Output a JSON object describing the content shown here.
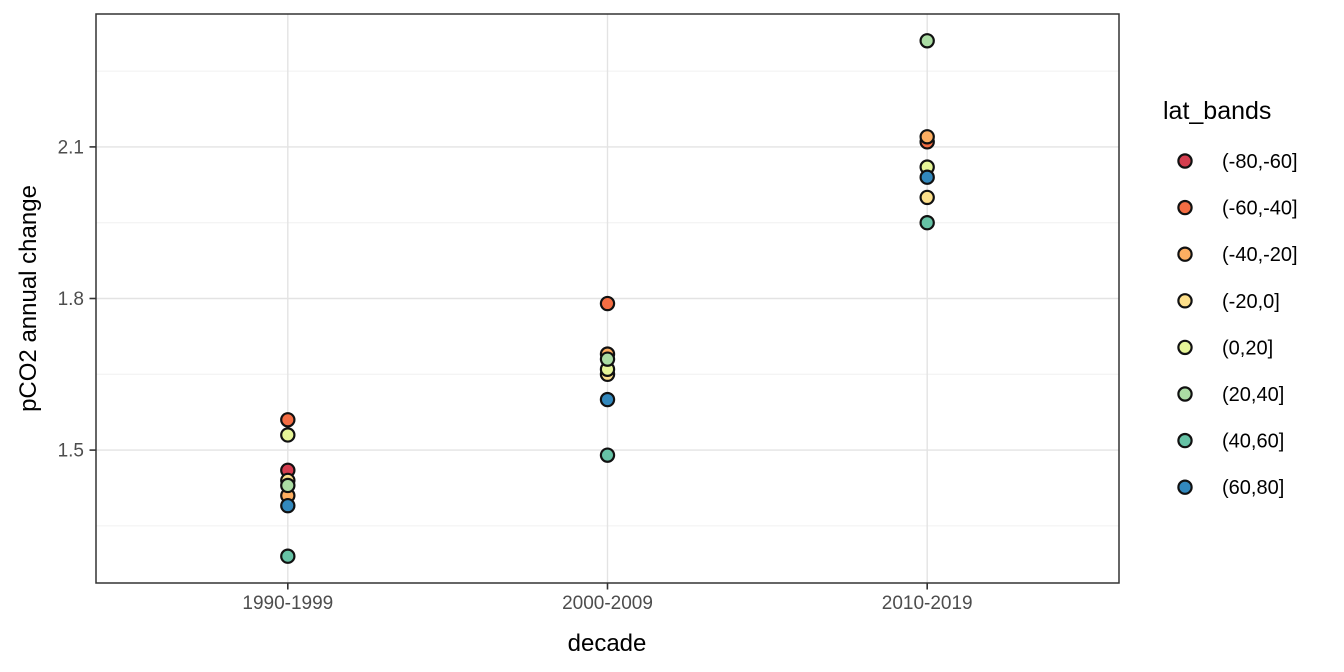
{
  "figure": {
    "kind": "ggplot-scatter-screenshot",
    "background": "#ffffff"
  },
  "chart_data": {
    "type": "scatter",
    "title": "",
    "xlabel": "decade",
    "ylabel": "pCO2 annual change",
    "categories": [
      "1990-1999",
      "2000-2009",
      "2010-2019"
    ],
    "ylim": [
      1.237,
      2.363
    ],
    "y_ticks_major": [
      1.5,
      1.8,
      2.1
    ],
    "y_ticks_minor": [
      1.35,
      1.65,
      1.95,
      2.25
    ],
    "grid": "on",
    "legend": {
      "title": "lat_bands",
      "position": "right"
    },
    "series": [
      {
        "name": "(-80,-60]",
        "color": "#D53E4F",
        "values": [
          1.46,
          null,
          null
        ]
      },
      {
        "name": "(-60,-40]",
        "color": "#F46D43",
        "values": [
          1.56,
          1.79,
          2.11
        ]
      },
      {
        "name": "(-40,-20]",
        "color": "#FDAE61",
        "values": [
          1.41,
          1.69,
          2.12
        ]
      },
      {
        "name": "(-20,0]",
        "color": "#FEE08B",
        "values": [
          1.44,
          1.65,
          2.0
        ]
      },
      {
        "name": "(0,20]",
        "color": "#E6F598",
        "values": [
          1.53,
          1.66,
          2.06
        ]
      },
      {
        "name": "(20,40]",
        "color": "#ABDDA4",
        "values": [
          1.43,
          1.68,
          2.31
        ]
      },
      {
        "name": "(40,60]",
        "color": "#66C2A5",
        "values": [
          1.29,
          1.49,
          1.95
        ]
      },
      {
        "name": "(60,80]",
        "color": "#3288BD",
        "values": [
          1.39,
          1.6,
          2.04
        ]
      }
    ],
    "style": {
      "panel_border_color": "#333333",
      "grid_major_color": "#e3e3e3",
      "grid_minor_color": "#f0f0f0",
      "tick_color": "#333333",
      "tick_label_color": "#4d4d4d",
      "point_stroke_color": "#111111"
    }
  }
}
